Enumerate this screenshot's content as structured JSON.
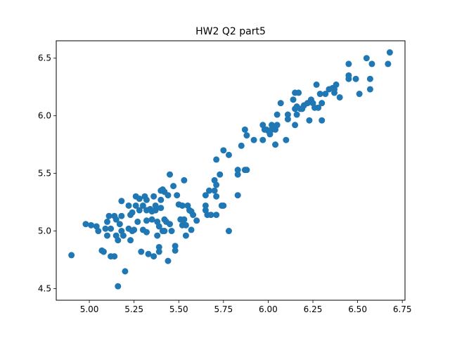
{
  "chart_data": {
    "type": "scatter",
    "title": "HW2 Q2 part5",
    "xlabel": "",
    "ylabel": "",
    "xlim": [
      4.815,
      6.765
    ],
    "ylim": [
      4.399,
      6.651
    ],
    "xticks": [
      5.0,
      5.25,
      5.5,
      5.75,
      6.0,
      6.25,
      6.5,
      6.75
    ],
    "xtick_labels": [
      "5.00",
      "5.25",
      "5.50",
      "5.75",
      "6.00",
      "6.25",
      "6.50",
      "6.75"
    ],
    "yticks": [
      4.5,
      5.0,
      5.5,
      6.0,
      6.5
    ],
    "ytick_labels": [
      "4.5",
      "5.0",
      "5.5",
      "6.0",
      "6.5"
    ],
    "grid": false,
    "legend": "none",
    "marker_color": "#1f77b4",
    "points": [
      [
        4.9,
        4.79
      ],
      [
        4.98,
        5.06
      ],
      [
        5.01,
        5.05
      ],
      [
        5.04,
        5.04
      ],
      [
        5.05,
        5.0
      ],
      [
        5.07,
        4.83
      ],
      [
        5.08,
        4.82
      ],
      [
        5.09,
        5.02
      ],
      [
        5.1,
        5.08
      ],
      [
        5.1,
        4.96
      ],
      [
        5.11,
        5.13
      ],
      [
        5.12,
        5.02
      ],
      [
        5.12,
        4.78
      ],
      [
        5.14,
        4.78
      ],
      [
        5.14,
        5.13
      ],
      [
        5.15,
        5.1
      ],
      [
        5.15,
        4.96
      ],
      [
        5.16,
        4.92
      ],
      [
        5.16,
        4.52
      ],
      [
        5.17,
        5.06
      ],
      [
        5.18,
        5.26
      ],
      [
        5.18,
        5.13
      ],
      [
        5.18,
        5.0
      ],
      [
        5.19,
        4.96
      ],
      [
        5.2,
        4.65
      ],
      [
        5.22,
        5.02
      ],
      [
        5.22,
        5.22
      ],
      [
        5.23,
        4.92
      ],
      [
        5.23,
        5.14
      ],
      [
        5.24,
        5.0
      ],
      [
        5.24,
        5.16
      ],
      [
        5.25,
        5.01
      ],
      [
        5.26,
        5.22
      ],
      [
        5.26,
        5.3
      ],
      [
        5.27,
        5.08
      ],
      [
        5.28,
        5.18
      ],
      [
        5.28,
        5.28
      ],
      [
        5.29,
        4.82
      ],
      [
        5.3,
        5.01
      ],
      [
        5.3,
        5.22
      ],
      [
        5.31,
        5.3
      ],
      [
        5.32,
        5.18
      ],
      [
        5.32,
        5.09
      ],
      [
        5.32,
        4.99
      ],
      [
        5.32,
        5.27
      ],
      [
        5.33,
        4.8
      ],
      [
        5.34,
        5.19
      ],
      [
        5.35,
        5.1
      ],
      [
        5.35,
        5.17
      ],
      [
        5.36,
        4.78
      ],
      [
        5.36,
        5.3
      ],
      [
        5.37,
        5.18
      ],
      [
        5.37,
        5.22
      ],
      [
        5.38,
        4.96
      ],
      [
        5.38,
        5.08
      ],
      [
        5.39,
        5.04
      ],
      [
        5.39,
        4.86
      ],
      [
        5.39,
        4.82
      ],
      [
        5.4,
        5.27
      ],
      [
        5.4,
        5.35
      ],
      [
        5.4,
        5.2
      ],
      [
        5.41,
        5.36
      ],
      [
        5.41,
        5.0
      ],
      [
        5.42,
        5.34
      ],
      [
        5.42,
        5.1
      ],
      [
        5.42,
        5.0
      ],
      [
        5.43,
        5.08
      ],
      [
        5.44,
        4.74
      ],
      [
        5.44,
        5.31
      ],
      [
        5.45,
        5.49
      ],
      [
        5.45,
        5.06
      ],
      [
        5.46,
        5.0
      ],
      [
        5.47,
        5.39
      ],
      [
        5.48,
        4.87
      ],
      [
        5.48,
        4.83
      ],
      [
        5.49,
        5.31
      ],
      [
        5.5,
        5.23
      ],
      [
        5.51,
        5.1
      ],
      [
        5.52,
        5.05
      ],
      [
        5.52,
        5.22
      ],
      [
        5.53,
        5.44
      ],
      [
        5.53,
        5.1
      ],
      [
        5.54,
        4.96
      ],
      [
        5.54,
        5.05
      ],
      [
        5.55,
        5.22
      ],
      [
        5.56,
        5.18
      ],
      [
        5.57,
        5.01
      ],
      [
        5.57,
        5.17
      ],
      [
        5.58,
        5.14
      ],
      [
        5.6,
        5.09
      ],
      [
        5.65,
        5.31
      ],
      [
        5.65,
        5.22
      ],
      [
        5.65,
        5.18
      ],
      [
        5.66,
        5.14
      ],
      [
        5.67,
        5.35
      ],
      [
        5.68,
        5.14
      ],
      [
        5.7,
        5.35
      ],
      [
        5.7,
        5.44
      ],
      [
        5.71,
        5.4
      ],
      [
        5.71,
        5.3
      ],
      [
        5.71,
        5.14
      ],
      [
        5.71,
        5.62
      ],
      [
        5.73,
        5.49
      ],
      [
        5.74,
        5.22
      ],
      [
        5.75,
        5.22
      ],
      [
        5.75,
        5.7
      ],
      [
        5.78,
        5.66
      ],
      [
        5.78,
        5.0
      ],
      [
        5.83,
        5.53
      ],
      [
        5.83,
        5.49
      ],
      [
        5.83,
        5.31
      ],
      [
        5.85,
        5.74
      ],
      [
        5.87,
        5.88
      ],
      [
        5.87,
        5.53
      ],
      [
        5.88,
        5.53
      ],
      [
        5.88,
        5.83
      ],
      [
        5.92,
        5.79
      ],
      [
        5.97,
        5.79
      ],
      [
        5.97,
        5.92
      ],
      [
        5.98,
        5.88
      ],
      [
        5.99,
        5.88
      ],
      [
        6.0,
        5.87
      ],
      [
        6.01,
        5.84
      ],
      [
        6.02,
        5.88
      ],
      [
        6.02,
        5.92
      ],
      [
        6.04,
        5.75
      ],
      [
        6.04,
        5.88
      ],
      [
        6.05,
        5.92
      ],
      [
        6.05,
        6.01
      ],
      [
        6.07,
        6.11
      ],
      [
        6.1,
        5.79
      ],
      [
        6.11,
        6.01
      ],
      [
        6.11,
        5.97
      ],
      [
        6.14,
        6.14
      ],
      [
        6.15,
        6.2
      ],
      [
        6.15,
        6.06
      ],
      [
        6.15,
        5.92
      ],
      [
        6.16,
        6.01
      ],
      [
        6.16,
        6.08
      ],
      [
        6.17,
        6.2
      ],
      [
        6.18,
        6.06
      ],
      [
        6.19,
        6.06
      ],
      [
        6.2,
        6.09
      ],
      [
        6.22,
        6.11
      ],
      [
        6.23,
        5.96
      ],
      [
        6.24,
        6.14
      ],
      [
        6.25,
        6.11
      ],
      [
        6.26,
        6.07
      ],
      [
        6.27,
        6.27
      ],
      [
        6.28,
        6.07
      ],
      [
        6.29,
        6.19
      ],
      [
        6.3,
        6.11
      ],
      [
        6.3,
        5.96
      ],
      [
        6.32,
        6.19
      ],
      [
        6.34,
        6.23
      ],
      [
        6.36,
        6.24
      ],
      [
        6.37,
        6.2
      ],
      [
        6.37,
        6.23
      ],
      [
        6.38,
        6.27
      ],
      [
        6.4,
        6.16
      ],
      [
        6.45,
        6.35
      ],
      [
        6.45,
        6.32
      ],
      [
        6.45,
        6.45
      ],
      [
        6.49,
        6.32
      ],
      [
        6.51,
        6.19
      ],
      [
        6.55,
        6.5
      ],
      [
        6.57,
        6.32
      ],
      [
        6.57,
        6.23
      ],
      [
        6.58,
        6.45
      ],
      [
        6.67,
        6.45
      ],
      [
        6.68,
        6.55
      ]
    ]
  }
}
